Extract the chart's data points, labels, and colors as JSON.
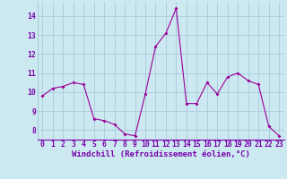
{
  "x": [
    0,
    1,
    2,
    3,
    4,
    5,
    6,
    7,
    8,
    9,
    10,
    11,
    12,
    13,
    14,
    15,
    16,
    17,
    18,
    19,
    20,
    21,
    22,
    23
  ],
  "y": [
    9.8,
    10.2,
    10.3,
    10.5,
    10.4,
    8.6,
    8.5,
    8.3,
    7.8,
    7.7,
    9.9,
    12.4,
    13.1,
    14.4,
    9.4,
    9.4,
    10.5,
    9.9,
    10.8,
    11.0,
    10.6,
    10.4,
    8.2,
    7.7
  ],
  "line_color": "#990099",
  "marker": "D",
  "marker_size": 2.0,
  "bg_color": "#cce8f0",
  "grid_color": "#aaccdd",
  "xlabel": "Windchill (Refroidissement éolien,°C)",
  "xlabel_color": "#7700aa",
  "xlabel_fontsize": 6.5,
  "tick_color": "#7700aa",
  "tick_fontsize": 5.8,
  "ylim": [
    7.5,
    14.75
  ],
  "yticks": [
    8,
    9,
    10,
    11,
    12,
    13,
    14
  ],
  "xticks": [
    0,
    1,
    2,
    3,
    4,
    5,
    6,
    7,
    8,
    9,
    10,
    11,
    12,
    13,
    14,
    15,
    16,
    17,
    18,
    19,
    20,
    21,
    22,
    23
  ]
}
